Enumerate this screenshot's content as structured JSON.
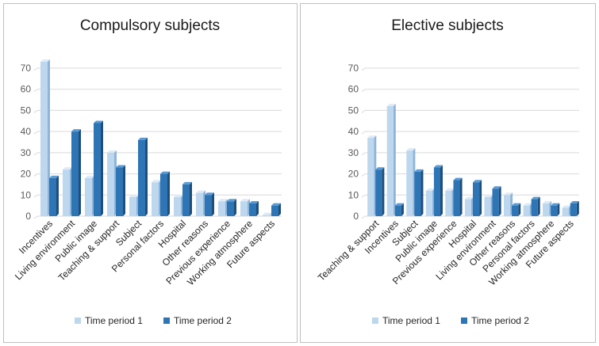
{
  "chart_data": [
    {
      "type": "bar",
      "title": "Compulsory subjects",
      "categories": [
        "Incentives",
        "Living environment",
        "Public image",
        "Teaching & support",
        "Subject",
        "Personal factors",
        "Hospital",
        "Other reasons",
        "Previous experience",
        "Working atmosphere",
        "Future aspects"
      ],
      "series": [
        {
          "name": "Time period 1",
          "values": [
            73,
            22,
            18,
            30,
            9,
            16,
            9,
            11,
            7,
            7,
            0.5
          ]
        },
        {
          "name": "Time period 2",
          "values": [
            18,
            40,
            44,
            23,
            36,
            20,
            15,
            10,
            7,
            6,
            5
          ]
        }
      ],
      "ylim": [
        0,
        70
      ],
      "yticks": [
        0,
        10,
        20,
        30,
        40,
        50,
        60,
        70
      ],
      "grid": true,
      "legend": "bottom"
    },
    {
      "type": "bar",
      "title": "Elective subjects",
      "categories": [
        "Teaching & support",
        "Incentives",
        "Subject",
        "Public image",
        "Previous experience",
        "Hospital",
        "Living environment",
        "Other reasons",
        "Personal factors",
        "Working atmosphere",
        "Future aspects"
      ],
      "series": [
        {
          "name": "Time period 1",
          "values": [
            37,
            52,
            31,
            12,
            12,
            8,
            9,
            10,
            5,
            6,
            4
          ]
        },
        {
          "name": "Time period 2",
          "values": [
            22,
            5,
            21,
            23,
            17,
            16,
            13,
            5,
            8,
            5,
            6
          ]
        }
      ],
      "ylim": [
        0,
        70
      ],
      "yticks": [
        0,
        10,
        20,
        30,
        40,
        50,
        60,
        70
      ],
      "grid": true,
      "legend": "bottom"
    }
  ],
  "colors": {
    "series1_front": "#bdd7ee",
    "series1_side": "#8fb4d9",
    "series1_top": "#ddeaf7",
    "series2_front": "#2e75b6",
    "series2_side": "#1f4e79",
    "series2_top": "#5b9bd5",
    "grid": "#d9d9d9",
    "border": "#bfbfbf"
  }
}
